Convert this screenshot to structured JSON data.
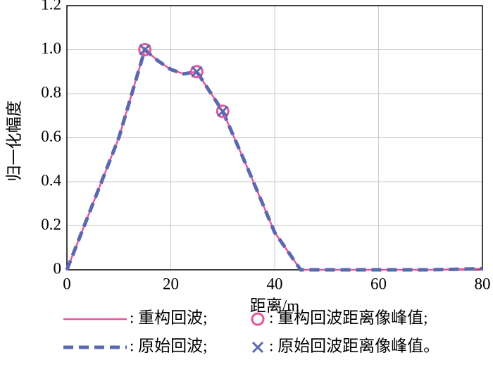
{
  "chart_data": {
    "type": "line",
    "xlabel": "距离/m",
    "ylabel": "归一化幅度",
    "xlim": [
      0,
      80
    ],
    "xticks": [
      0,
      20,
      40,
      60,
      80
    ],
    "ylim": [
      0,
      1.2
    ],
    "yticks": [
      0,
      0.2,
      0.4,
      0.6,
      0.8,
      {
        "value": 1,
        "label": "1.0"
      },
      1.2
    ],
    "grid": true,
    "x": [
      0,
      5,
      10,
      15,
      17.5,
      20,
      22.5,
      25,
      27.5,
      30,
      35,
      40,
      45,
      50,
      60,
      70,
      80
    ],
    "series": [
      {
        "name": ": 重构回波;",
        "color": "#e8559b",
        "dashed": false,
        "values": [
          0,
          0.3,
          0.6,
          1.0,
          0.95,
          0.91,
          0.89,
          0.9,
          0.81,
          0.72,
          0.45,
          0.17,
          0,
          0,
          0,
          0,
          0.005
        ]
      },
      {
        "name": ": 原始回波;",
        "color": "#5a68b0",
        "dashed": true,
        "values": [
          0,
          0.3,
          0.6,
          1.0,
          0.95,
          0.91,
          0.89,
          0.9,
          0.81,
          0.72,
          0.45,
          0.17,
          0,
          0,
          0,
          0,
          0.005
        ]
      }
    ],
    "peaks": [
      {
        "name": ": 重构回波距离像峰值;",
        "color": "#e8559b",
        "marker": "circle",
        "x": [
          15,
          25,
          30
        ],
        "values": [
          1.0,
          0.9,
          0.72
        ]
      },
      {
        "name": ": 原始回波距离像峰值。",
        "color": "#5a68b0",
        "marker": "cross",
        "x": [
          15,
          25,
          30
        ],
        "values": [
          1.0,
          0.9,
          0.72
        ]
      }
    ]
  }
}
